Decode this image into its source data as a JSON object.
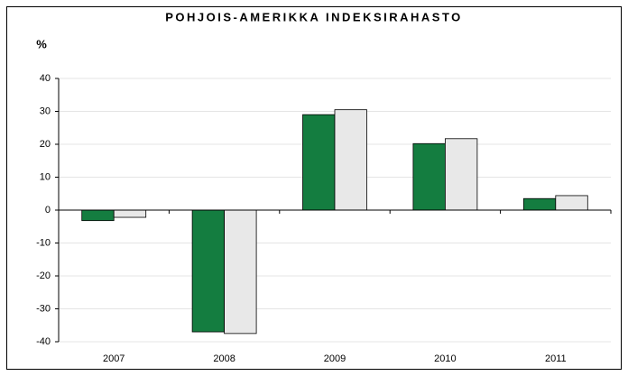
{
  "chart_data": {
    "type": "bar",
    "title": "POHJOIS-AMERIKKA INDEKSIRAHASTO",
    "y_label": "%",
    "categories": [
      "2007",
      "2008",
      "2009",
      "2010",
      "2011"
    ],
    "series": [
      {
        "color": "#147d40",
        "values": [
          -3.2,
          -37,
          29,
          20.2,
          3.5
        ]
      },
      {
        "color": "#e8e8e8",
        "values": [
          -2.2,
          -37.5,
          30.5,
          21.7,
          4.4
        ]
      }
    ],
    "ylim": [
      -40,
      40
    ],
    "yticks": [
      -40,
      -30,
      -20,
      -10,
      0,
      10,
      20,
      30,
      40
    ],
    "grid": true
  }
}
